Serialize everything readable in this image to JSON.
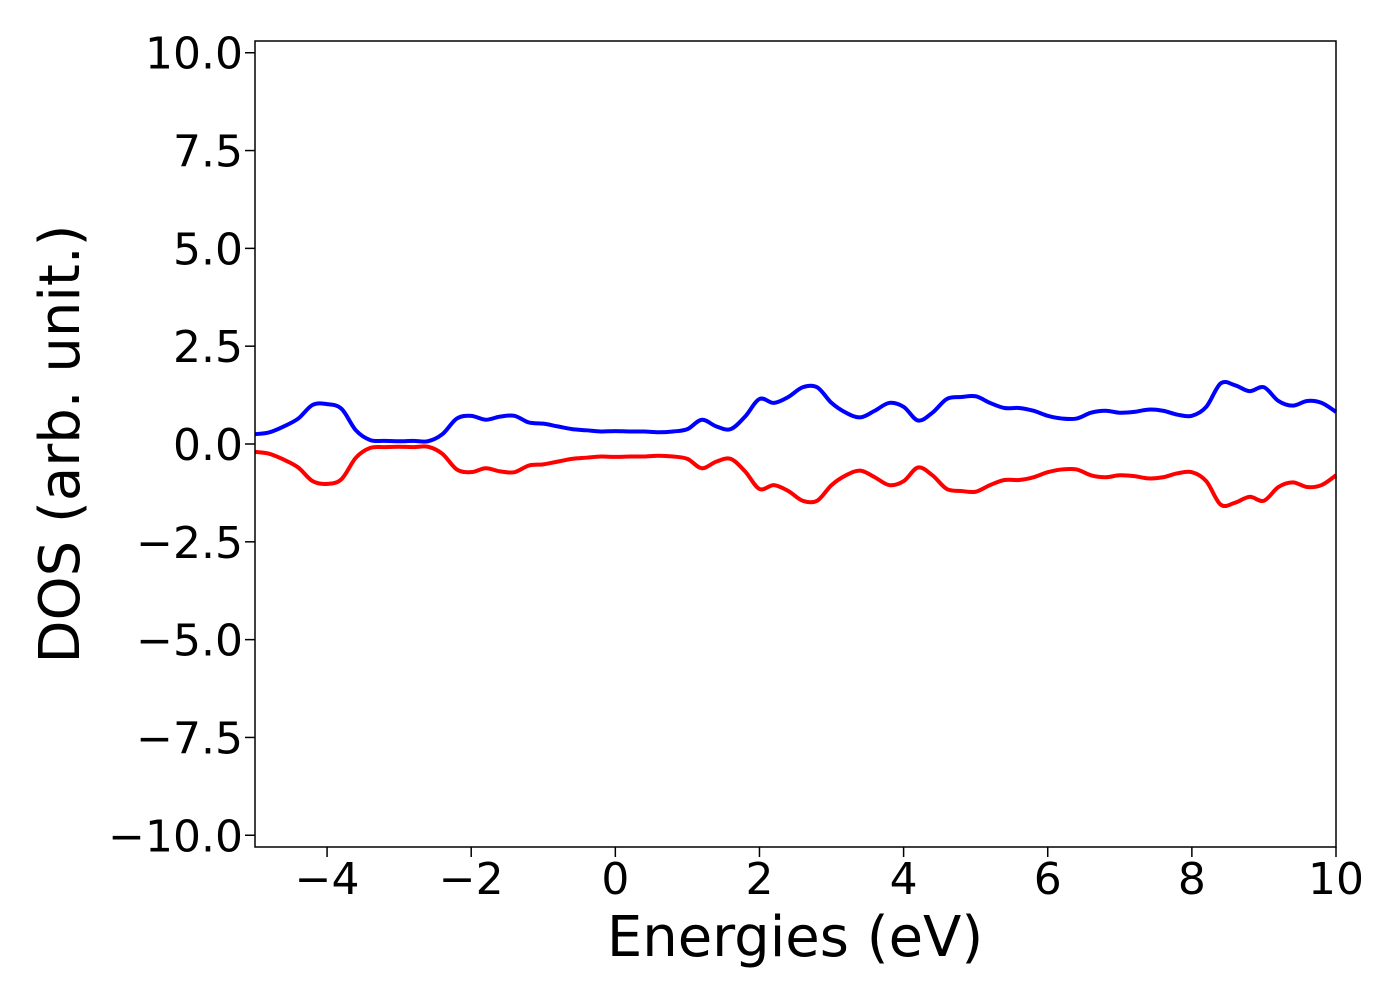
{
  "chart_data": {
    "type": "line",
    "title": "",
    "xlabel": "Energies (eV)",
    "ylabel": "DOS (arb. unit.)",
    "xlim": [
      -5,
      10
    ],
    "ylim": [
      -10.3,
      10.3
    ],
    "grid": false,
    "x_ticks": [
      -4,
      -2,
      0,
      2,
      4,
      6,
      8,
      10
    ],
    "x_tick_labels": [
      "−4",
      "−2",
      "0",
      "2",
      "4",
      "6",
      "8",
      "10"
    ],
    "y_ticks": [
      10.0,
      7.5,
      5.0,
      2.5,
      0.0,
      -2.5,
      -5.0,
      -7.5,
      -10.0
    ],
    "y_tick_labels": [
      "10.0",
      "7.5",
      "5.0",
      "2.5",
      "0.0",
      "−2.5",
      "−5.0",
      "−7.5",
      "−10.0"
    ],
    "series": [
      {
        "color": "#0000ff",
        "x": [
          -5.0,
          -4.8,
          -4.6,
          -4.4,
          -4.2,
          -4.0,
          -3.8,
          -3.6,
          -3.4,
          -3.2,
          -3.0,
          -2.8,
          -2.6,
          -2.4,
          -2.2,
          -2.0,
          -1.8,
          -1.6,
          -1.4,
          -1.2,
          -1.0,
          -0.8,
          -0.6,
          -0.4,
          -0.2,
          0.0,
          0.2,
          0.4,
          0.6,
          0.8,
          1.0,
          1.2,
          1.4,
          1.6,
          1.8,
          2.0,
          2.2,
          2.4,
          2.6,
          2.8,
          3.0,
          3.2,
          3.4,
          3.6,
          3.8,
          4.0,
          4.2,
          4.4,
          4.6,
          4.8,
          5.0,
          5.2,
          5.4,
          5.6,
          5.8,
          6.0,
          6.2,
          6.4,
          6.6,
          6.8,
          7.0,
          7.2,
          7.4,
          7.6,
          7.8,
          8.0,
          8.2,
          8.4,
          8.6,
          8.8,
          9.0,
          9.2,
          9.4,
          9.6,
          9.8,
          10.0
        ],
        "y": [
          0.25,
          0.3,
          0.45,
          0.65,
          1.0,
          1.02,
          0.9,
          0.35,
          0.1,
          0.08,
          0.07,
          0.08,
          0.07,
          0.25,
          0.65,
          0.72,
          0.62,
          0.7,
          0.72,
          0.55,
          0.52,
          0.45,
          0.38,
          0.35,
          0.32,
          0.33,
          0.32,
          0.32,
          0.3,
          0.32,
          0.38,
          0.62,
          0.45,
          0.38,
          0.7,
          1.15,
          1.05,
          1.2,
          1.45,
          1.45,
          1.05,
          0.8,
          0.68,
          0.85,
          1.05,
          0.95,
          0.6,
          0.8,
          1.15,
          1.2,
          1.22,
          1.05,
          0.92,
          0.92,
          0.85,
          0.72,
          0.65,
          0.65,
          0.8,
          0.85,
          0.8,
          0.82,
          0.88,
          0.85,
          0.75,
          0.72,
          0.95,
          1.55,
          1.5,
          1.35,
          1.45,
          1.1,
          0.98,
          1.1,
          1.05,
          0.82
        ]
      },
      {
        "color": "#ff0000",
        "x": [
          -5.0,
          -4.8,
          -4.6,
          -4.4,
          -4.2,
          -4.0,
          -3.8,
          -3.6,
          -3.4,
          -3.2,
          -3.0,
          -2.8,
          -2.6,
          -2.4,
          -2.2,
          -2.0,
          -1.8,
          -1.6,
          -1.4,
          -1.2,
          -1.0,
          -0.8,
          -0.6,
          -0.4,
          -0.2,
          0.0,
          0.2,
          0.4,
          0.6,
          0.8,
          1.0,
          1.2,
          1.4,
          1.6,
          1.8,
          2.0,
          2.2,
          2.4,
          2.6,
          2.8,
          3.0,
          3.2,
          3.4,
          3.6,
          3.8,
          4.0,
          4.2,
          4.4,
          4.6,
          4.8,
          5.0,
          5.2,
          5.4,
          5.6,
          5.8,
          6.0,
          6.2,
          6.4,
          6.6,
          6.8,
          7.0,
          7.2,
          7.4,
          7.6,
          7.8,
          8.0,
          8.2,
          8.4,
          8.6,
          8.8,
          9.0,
          9.2,
          9.4,
          9.6,
          9.8,
          10.0
        ],
        "y": [
          -0.2,
          -0.25,
          -0.4,
          -0.6,
          -0.95,
          -1.02,
          -0.9,
          -0.35,
          -0.1,
          -0.08,
          -0.07,
          -0.08,
          -0.07,
          -0.25,
          -0.65,
          -0.72,
          -0.62,
          -0.7,
          -0.72,
          -0.55,
          -0.52,
          -0.45,
          -0.38,
          -0.35,
          -0.32,
          -0.33,
          -0.32,
          -0.32,
          -0.3,
          -0.32,
          -0.38,
          -0.62,
          -0.45,
          -0.38,
          -0.7,
          -1.15,
          -1.05,
          -1.2,
          -1.45,
          -1.45,
          -1.05,
          -0.8,
          -0.68,
          -0.85,
          -1.05,
          -0.95,
          -0.6,
          -0.8,
          -1.15,
          -1.2,
          -1.22,
          -1.05,
          -0.92,
          -0.92,
          -0.85,
          -0.72,
          -0.65,
          -0.65,
          -0.8,
          -0.85,
          -0.8,
          -0.82,
          -0.88,
          -0.85,
          -0.75,
          -0.72,
          -0.95,
          -1.55,
          -1.5,
          -1.35,
          -1.45,
          -1.1,
          -0.98,
          -1.1,
          -1.05,
          -0.8
        ]
      }
    ]
  }
}
